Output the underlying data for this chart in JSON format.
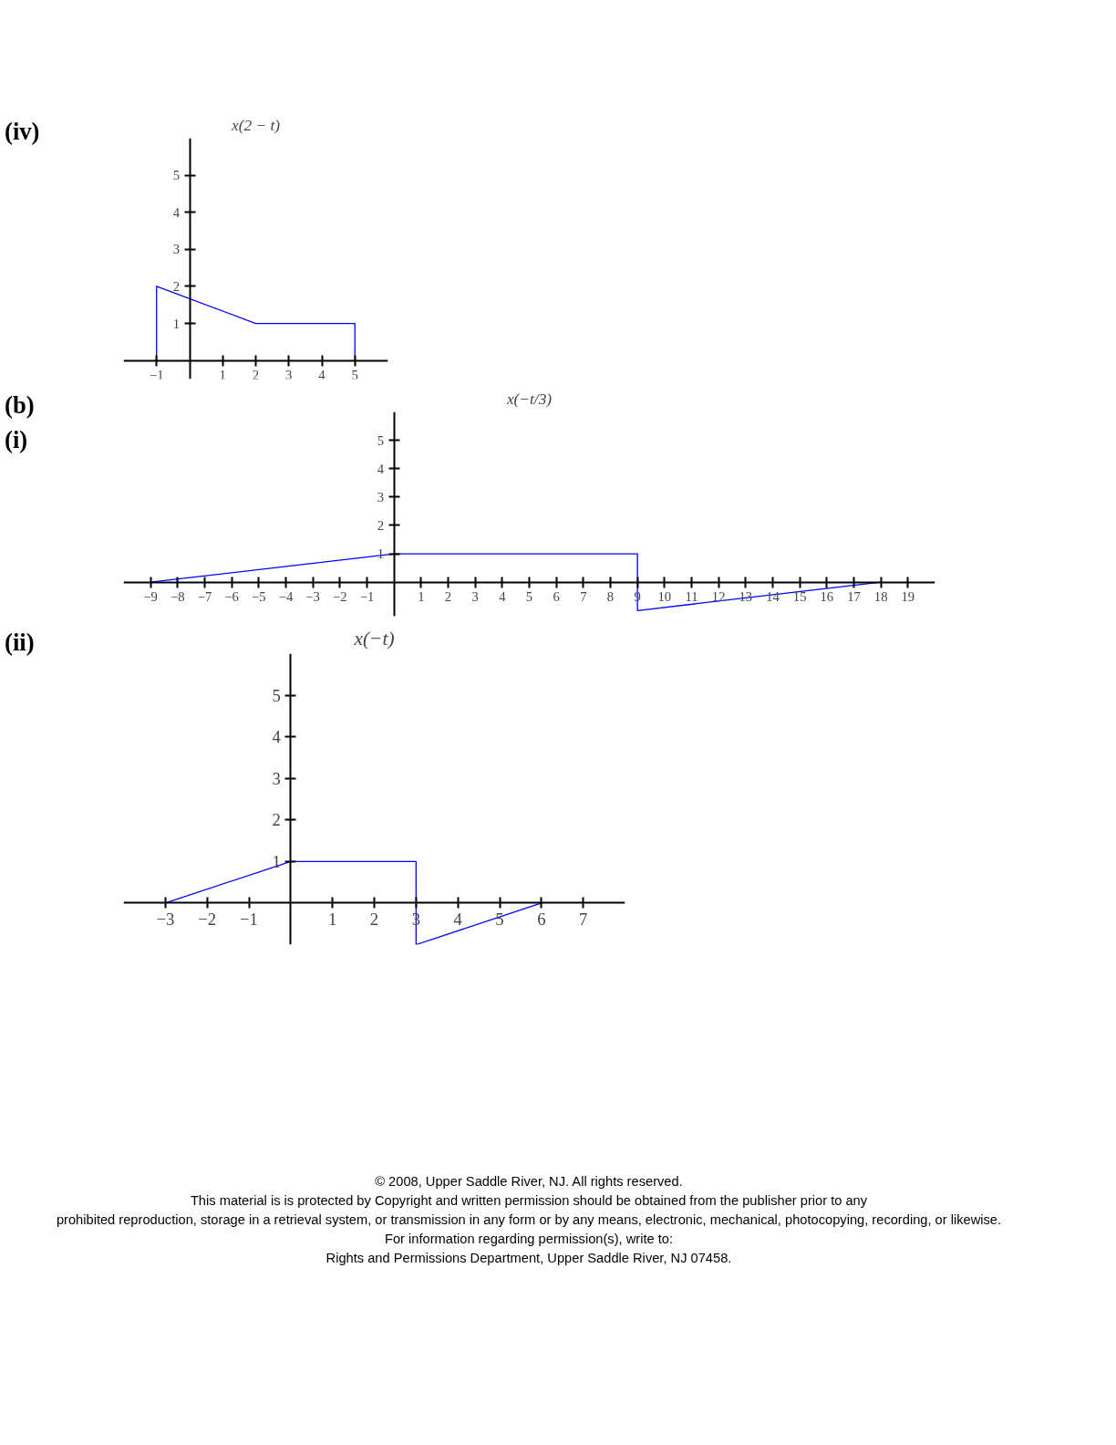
{
  "chart_data": [
    {
      "type": "line",
      "title": "x(2 − t)",
      "annotations": [
        "(iv)"
      ],
      "series": [
        {
          "color": "#0000ff",
          "x": [
            -1,
            -1,
            2,
            5,
            5
          ],
          "values": [
            0,
            2,
            1,
            1,
            0
          ]
        }
      ],
      "xlim": [
        -2,
        6
      ],
      "ylim": [
        -0.5,
        6
      ],
      "xticks": [
        -1,
        1,
        2,
        3,
        4,
        5
      ],
      "yticks": [
        1,
        2,
        3,
        4,
        5
      ],
      "grid": false
    },
    {
      "type": "line",
      "title": "x(−t/3)",
      "annotations": [
        "(b)",
        "(i)"
      ],
      "series": [
        {
          "color": "#0000ff",
          "x": [
            -9,
            0,
            9,
            9,
            18
          ],
          "values": [
            0,
            1,
            1,
            -1,
            0
          ]
        }
      ],
      "xlim": [
        -10,
        20
      ],
      "ylim": [
        -1.2,
        6
      ],
      "xticks": [
        -9,
        -8,
        -7,
        -6,
        -5,
        -4,
        -3,
        -2,
        -1,
        1,
        2,
        3,
        4,
        5,
        6,
        7,
        8,
        9,
        10,
        11,
        12,
        13,
        14,
        15,
        16,
        17,
        18,
        19
      ],
      "yticks": [
        1,
        2,
        3,
        4,
        5
      ],
      "grid": false
    },
    {
      "type": "line",
      "title": "x(−t)",
      "annotations": [
        "(ii)",
        "© 2008, Upper Saddle River, NJ.  All rights reserved.",
        "This material is is protected by Copyright and written permission should be obtained from the publisher prior to any",
        "prohibited reproduction, storage in a retrieval system, or transmission in any form or by any means, electronic, mechanical, photocopying, recording, or likewise.",
        "For information regarding permission(s), write to:",
        "Rights and Permissions Department, Upper Saddle River, NJ 07458."
      ],
      "series": [
        {
          "color": "#0000ff",
          "x": [
            -3,
            0,
            3,
            3,
            6
          ],
          "values": [
            0,
            1,
            1,
            -1,
            0
          ]
        }
      ],
      "xlim": [
        -4,
        8
      ],
      "ylim": [
        -1,
        6
      ],
      "xticks": [
        -3,
        -2,
        -1,
        1,
        2,
        3,
        4,
        5,
        6,
        7
      ],
      "yticks": [
        1,
        2,
        3,
        4,
        5
      ],
      "grid": false
    }
  ]
}
